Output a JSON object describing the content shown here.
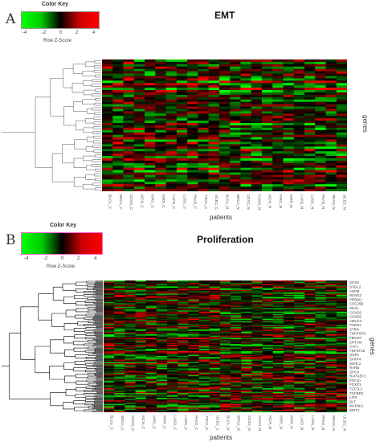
{
  "panels": [
    {
      "letter": "A",
      "title": "EMT",
      "color_key": {
        "title": "Color Key",
        "ticks": [
          "-4",
          "-2",
          "0",
          "2",
          "4"
        ],
        "subtitle": "Row Z-Score"
      },
      "xlabel": "patients",
      "ylabel": "genes"
    },
    {
      "letter": "B",
      "title": "Proliferation",
      "color_key": {
        "title": "Color Key",
        "ticks": [
          "-4",
          "-2",
          "0",
          "2",
          "4"
        ],
        "subtitle": "Row Z-Score"
      },
      "xlabel": "patients",
      "ylabel": "genes"
    }
  ],
  "colors": {
    "low": "#00ff00",
    "mid": "#000000",
    "high": "#ff0000",
    "key_border_b": "#ff66cc"
  },
  "chart_data": [
    {
      "type": "heatmap",
      "title": "EMT",
      "xlabel": "patients",
      "ylabel": "genes",
      "scale": {
        "label": "Row Z-Score",
        "min": -4,
        "max": 4
      },
      "columns": [
        "BLCA_C",
        "BRCA_C",
        "COAD_C",
        "KICH_C",
        "KIRC_C",
        "KIRP_C",
        "LUAD_C",
        "LUSC_C",
        "PAAD_C",
        "THCA_C",
        "UCEC_C",
        "BLCA_N",
        "BRCA_N",
        "CESC_N",
        "COAD_N",
        "KICH_N",
        "KIRC_N",
        "KIRP_N",
        "LUAD_N",
        "LUSC_N",
        "PAAD_N",
        "READ_N",
        "UCEC_N"
      ],
      "rows": []
    },
    {
      "type": "heatmap",
      "title": "Proliferation",
      "xlabel": "patients",
      "ylabel": "genes",
      "scale": {
        "label": "Row Z-Score",
        "min": -4,
        "max": 4
      },
      "columns": [
        "BLCA_C",
        "BRCA_C",
        "COAD_C",
        "KICH_C",
        "KIRC_C",
        "KIRP_C",
        "LUAD_C",
        "LUSC_C",
        "PAAD_C",
        "THCA_C",
        "UCEC_C",
        "BLCA_N",
        "BRCA_N",
        "CESC_N",
        "COAD_N",
        "KICH_N",
        "KIRC_N",
        "KIRP_N",
        "LUAD_N",
        "LUSC_N",
        "PAAD_N",
        "READ_N",
        "UCEC_N"
      ],
      "rows": [
        "SOX9",
        "DVDL2",
        "ASPM",
        "RUNX2",
        "PRDM1",
        "CDC25B",
        "HES1",
        "CCND2",
        "CCND1",
        "AMLG3",
        "PSEN1",
        "STRN",
        "TNFRSF8",
        "FBXW7",
        "CRTAM",
        "CAV1",
        "TNFSF18",
        "GDF5",
        "SFRP4",
        "DERL2",
        "RARB",
        "GPC4",
        "RAPGEF1",
        "FGF10",
        "FOXP1",
        "TCF7L2",
        "TGFBR3",
        "LIFR",
        "DLT",
        "MAP4K1",
        "WNT1"
      ]
    }
  ]
}
